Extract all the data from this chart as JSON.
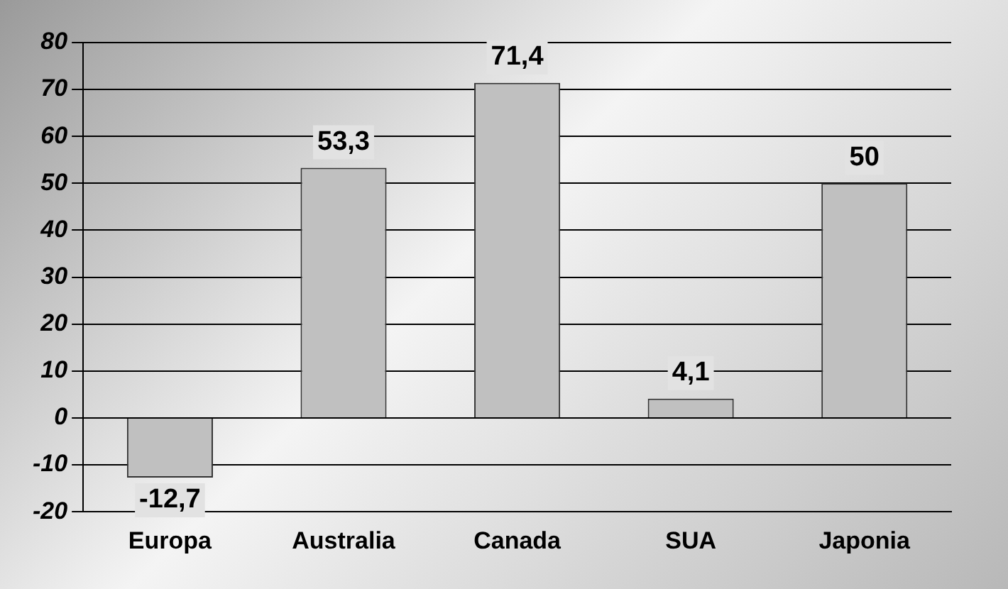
{
  "chart_data": {
    "type": "bar",
    "categories": [
      "Europa",
      "Australia",
      "Canada",
      "SUA",
      "Japonia"
    ],
    "values": [
      -12.7,
      53.3,
      71.4,
      4.1,
      50
    ],
    "value_labels": [
      "-12,7",
      "53,3",
      "71,4",
      "4,1",
      "50"
    ],
    "color": "#c0c0c0",
    "ylim": [
      -20,
      80
    ],
    "yticks": [
      -20,
      -10,
      0,
      10,
      20,
      30,
      40,
      50,
      60,
      70,
      80
    ],
    "grid": "y",
    "legend": false
  }
}
